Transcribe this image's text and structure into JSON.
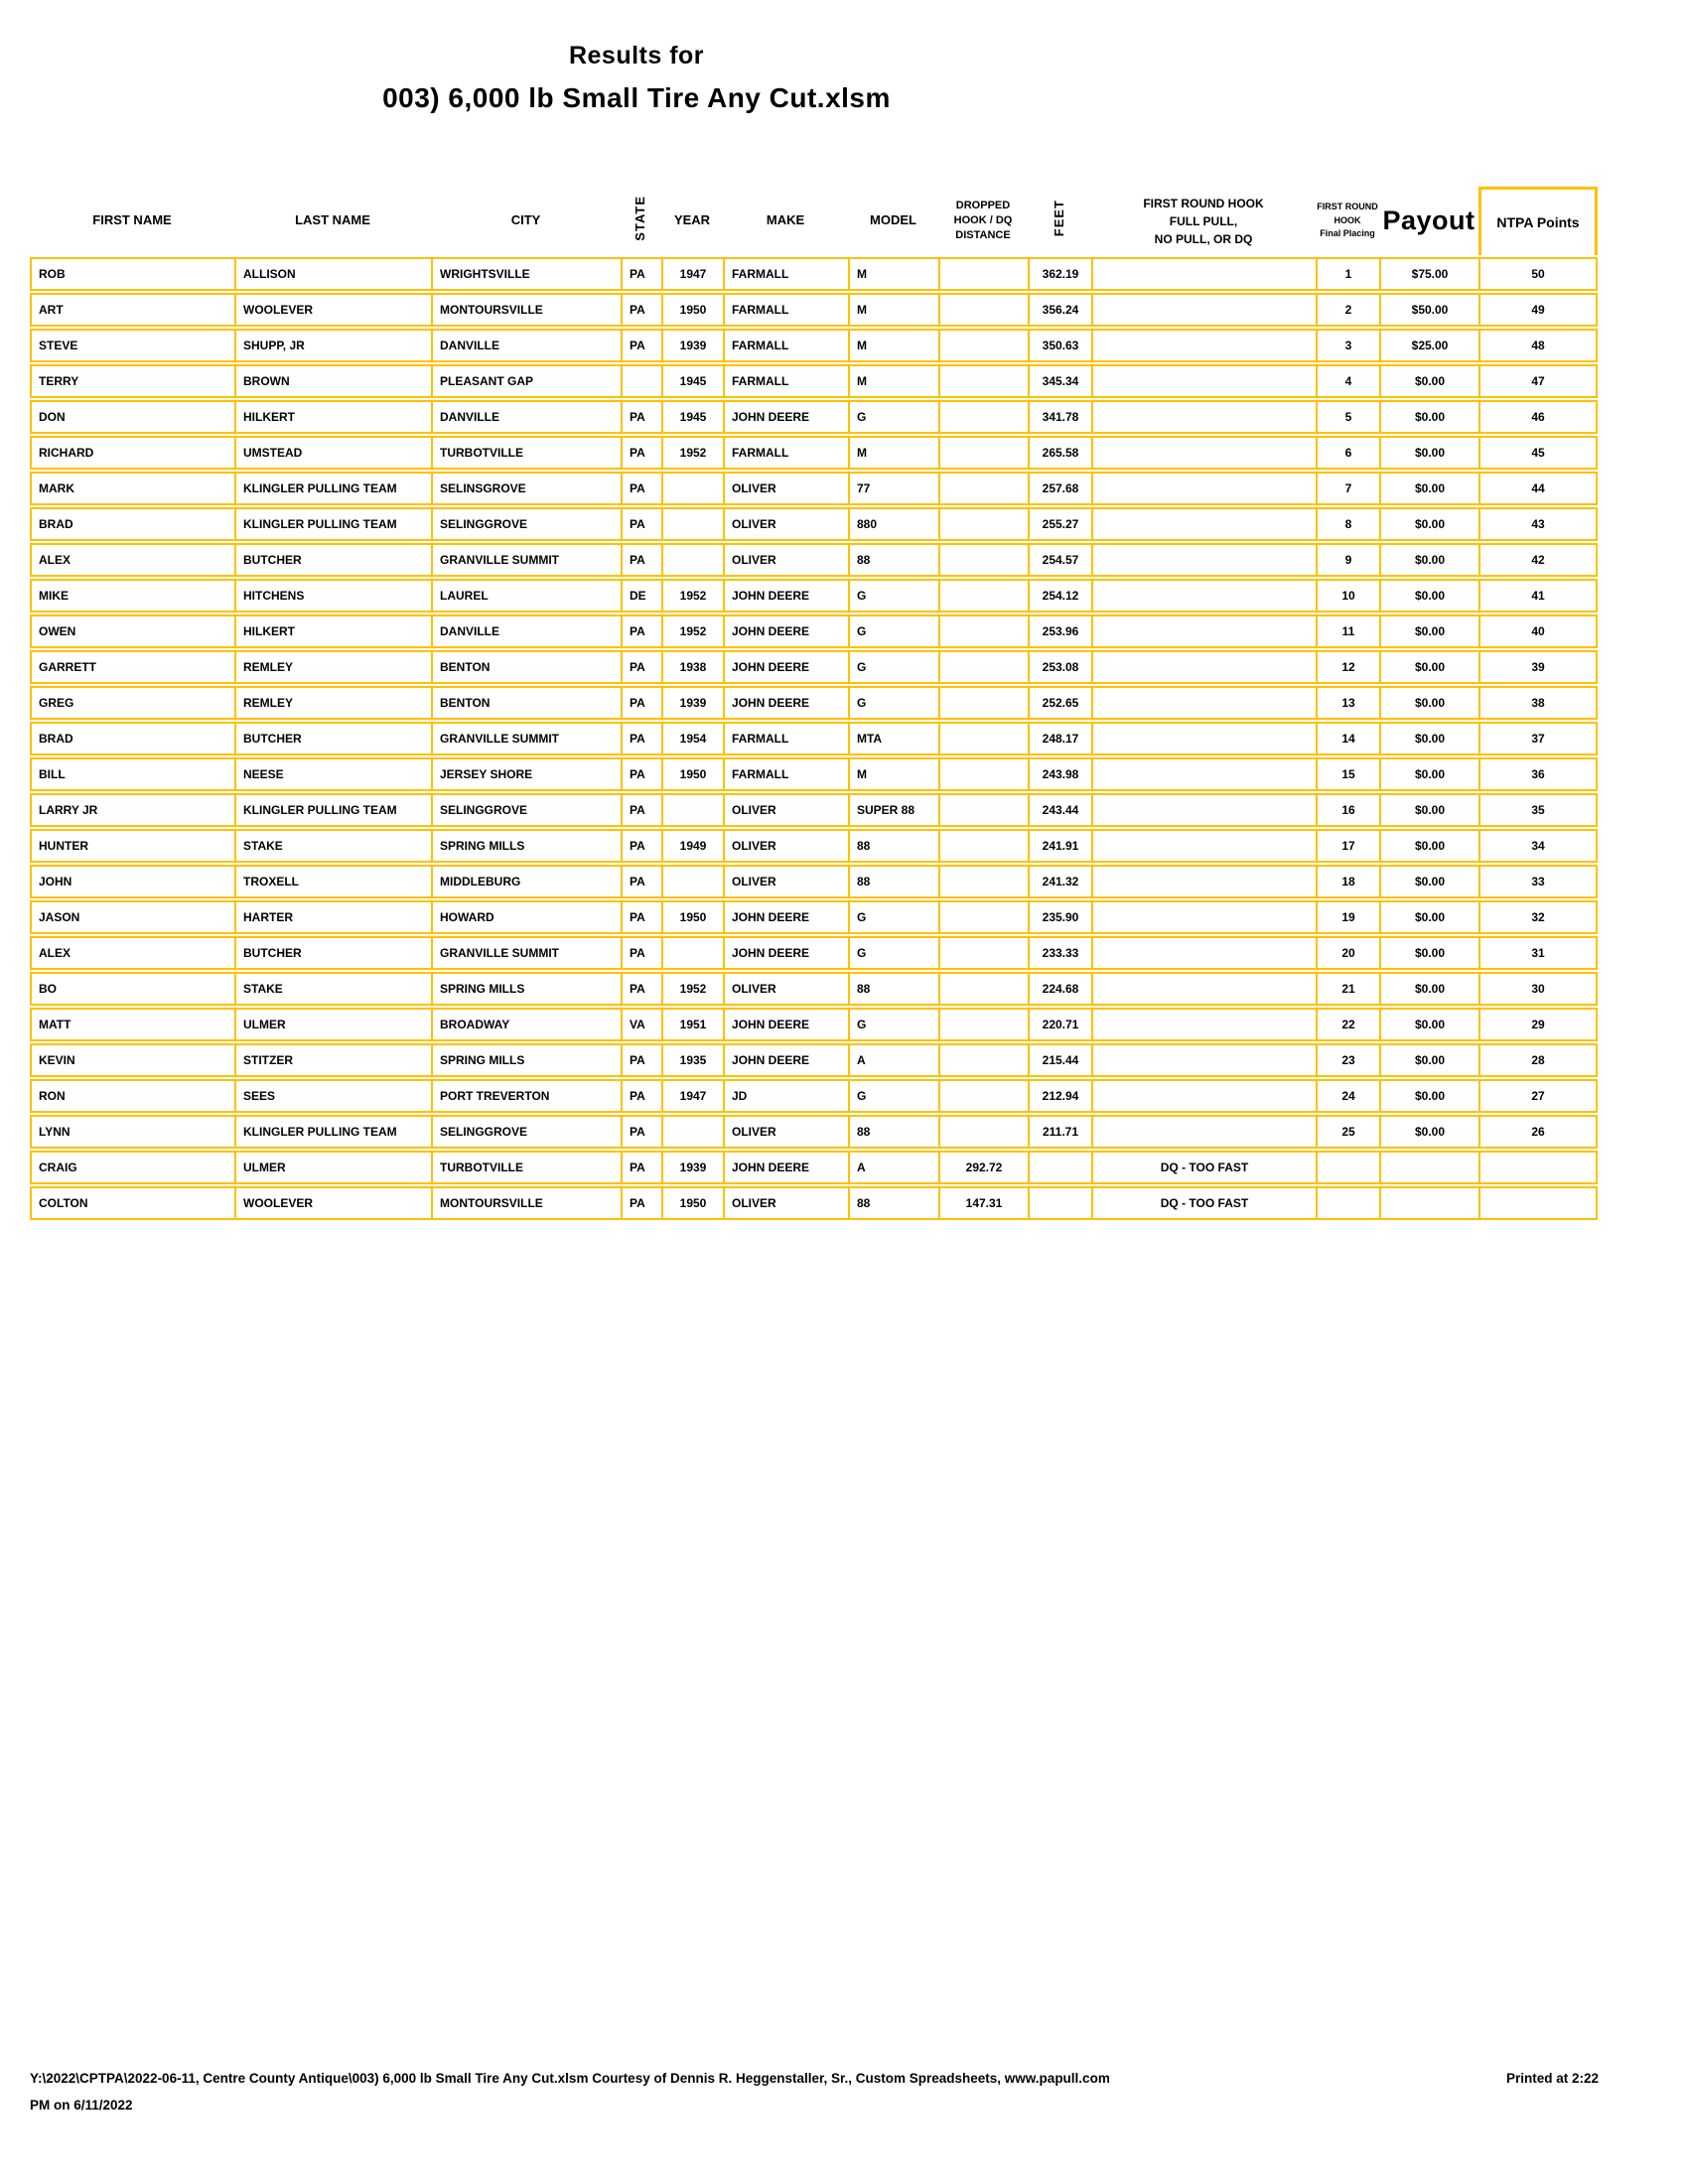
{
  "colors": {
    "grid": "#FFC000"
  },
  "title": {
    "line1": "Results for",
    "line2": "003) 6,000 lb Small Tire Any Cut.xlsm"
  },
  "table": {
    "headers": {
      "first_name": "FIRST NAME",
      "last_name": "LAST NAME",
      "city": "CITY",
      "state": "STATE",
      "year": "YEAR",
      "make": "MAKE",
      "model": "MODEL",
      "dropped": "DROPPED\nHOOK / DQ\nDISTANCE",
      "feet": "FEET",
      "first_round": "FIRST ROUND HOOK\nFULL PULL,\nNO PULL, OR DQ",
      "placing": "FIRST ROUND\nHOOK\nFinal Placing",
      "payout": "Payout",
      "ntpa": "NTPA Points"
    },
    "rows": [
      [
        "ROB",
        "ALLISON",
        "WRIGHTSVILLE",
        "PA",
        "1947",
        "FARMALL",
        "M",
        "",
        "362.19",
        "",
        "1",
        "$75.00",
        "50"
      ],
      [
        "ART",
        "WOOLEVER",
        "MONTOURSVILLE",
        "PA",
        "1950",
        "FARMALL",
        "M",
        "",
        "356.24",
        "",
        "2",
        "$50.00",
        "49"
      ],
      [
        "STEVE",
        "SHUPP, JR",
        "DANVILLE",
        "PA",
        "1939",
        "FARMALL",
        "M",
        "",
        "350.63",
        "",
        "3",
        "$25.00",
        "48"
      ],
      [
        "TERRY",
        "BROWN",
        "PLEASANT GAP",
        "",
        "1945",
        "FARMALL",
        "M",
        "",
        "345.34",
        "",
        "4",
        "$0.00",
        "47"
      ],
      [
        "DON",
        "HILKERT",
        "DANVILLE",
        "PA",
        "1945",
        "JOHN DEERE",
        "G",
        "",
        "341.78",
        "",
        "5",
        "$0.00",
        "46"
      ],
      [
        "RICHARD",
        "UMSTEAD",
        "TURBOTVILLE",
        "PA",
        "1952",
        "FARMALL",
        "M",
        "",
        "265.58",
        "",
        "6",
        "$0.00",
        "45"
      ],
      [
        "MARK",
        "KLINGLER PULLING TEAM",
        "SELINSGROVE",
        "PA",
        "",
        "OLIVER",
        "77",
        "",
        "257.68",
        "",
        "7",
        "$0.00",
        "44"
      ],
      [
        "BRAD",
        "KLINGLER PULLING TEAM",
        "SELINGGROVE",
        "PA",
        "",
        "OLIVER",
        "880",
        "",
        "255.27",
        "",
        "8",
        "$0.00",
        "43"
      ],
      [
        "ALEX",
        "BUTCHER",
        "GRANVILLE SUMMIT",
        "PA",
        "",
        "OLIVER",
        "88",
        "",
        "254.57",
        "",
        "9",
        "$0.00",
        "42"
      ],
      [
        "MIKE",
        "HITCHENS",
        "LAUREL",
        "DE",
        "1952",
        "JOHN DEERE",
        "G",
        "",
        "254.12",
        "",
        "10",
        "$0.00",
        "41"
      ],
      [
        "OWEN",
        "HILKERT",
        "DANVILLE",
        "PA",
        "1952",
        "JOHN DEERE",
        "G",
        "",
        "253.96",
        "",
        "11",
        "$0.00",
        "40"
      ],
      [
        "GARRETT",
        "REMLEY",
        "BENTON",
        "PA",
        "1938",
        "JOHN DEERE",
        "G",
        "",
        "253.08",
        "",
        "12",
        "$0.00",
        "39"
      ],
      [
        "GREG",
        "REMLEY",
        "BENTON",
        "PA",
        "1939",
        "JOHN DEERE",
        "G",
        "",
        "252.65",
        "",
        "13",
        "$0.00",
        "38"
      ],
      [
        "BRAD",
        "BUTCHER",
        "GRANVILLE SUMMIT",
        "PA",
        "1954",
        "FARMALL",
        "MTA",
        "",
        "248.17",
        "",
        "14",
        "$0.00",
        "37"
      ],
      [
        "BILL",
        "NEESE",
        "JERSEY SHORE",
        "PA",
        "1950",
        "FARMALL",
        "M",
        "",
        "243.98",
        "",
        "15",
        "$0.00",
        "36"
      ],
      [
        "LARRY JR",
        "KLINGLER PULLING TEAM",
        "SELINGGROVE",
        "PA",
        "",
        "OLIVER",
        "SUPER 88",
        "",
        "243.44",
        "",
        "16",
        "$0.00",
        "35"
      ],
      [
        "HUNTER",
        "STAKE",
        "SPRING MILLS",
        "PA",
        "1949",
        "OLIVER",
        "88",
        "",
        "241.91",
        "",
        "17",
        "$0.00",
        "34"
      ],
      [
        "JOHN",
        "TROXELL",
        "MIDDLEBURG",
        "PA",
        "",
        "OLIVER",
        "88",
        "",
        "241.32",
        "",
        "18",
        "$0.00",
        "33"
      ],
      [
        "JASON",
        "HARTER",
        "HOWARD",
        "PA",
        "1950",
        "JOHN DEERE",
        "G",
        "",
        "235.90",
        "",
        "19",
        "$0.00",
        "32"
      ],
      [
        "ALEX",
        "BUTCHER",
        "GRANVILLE SUMMIT",
        "PA",
        "",
        "JOHN DEERE",
        "G",
        "",
        "233.33",
        "",
        "20",
        "$0.00",
        "31"
      ],
      [
        "BO",
        "STAKE",
        "SPRING MILLS",
        "PA",
        "1952",
        "OLIVER",
        "88",
        "",
        "224.68",
        "",
        "21",
        "$0.00",
        "30"
      ],
      [
        "MATT",
        "ULMER",
        "BROADWAY",
        "VA",
        "1951",
        "JOHN DEERE",
        "G",
        "",
        "220.71",
        "",
        "22",
        "$0.00",
        "29"
      ],
      [
        "KEVIN",
        "STITZER",
        "SPRING MILLS",
        "PA",
        "1935",
        "JOHN DEERE",
        "A",
        "",
        "215.44",
        "",
        "23",
        "$0.00",
        "28"
      ],
      [
        "RON",
        "SEES",
        "PORT TREVERTON",
        "PA",
        "1947",
        "JD",
        "G",
        "",
        "212.94",
        "",
        "24",
        "$0.00",
        "27"
      ],
      [
        "LYNN",
        "KLINGLER PULLING TEAM",
        "SELINGGROVE",
        "PA",
        "",
        "OLIVER",
        "88",
        "",
        "211.71",
        "",
        "25",
        "$0.00",
        "26"
      ],
      [
        "CRAIG",
        "ULMER",
        "TURBOTVILLE",
        "PA",
        "1939",
        "JOHN DEERE",
        "A",
        "292.72",
        "",
        "DQ - TOO FAST",
        "",
        "",
        ""
      ],
      [
        "COLTON",
        "WOOLEVER",
        "MONTOURSVILLE",
        "PA",
        "1950",
        "OLIVER",
        "88",
        "147.31",
        "",
        "DQ - TOO FAST",
        "",
        "",
        ""
      ]
    ]
  },
  "footer": {
    "left": "Y:\\2022\\CPTPA\\2022-06-11, Centre County Antique\\003) 6,000 lb Small Tire Any Cut.xlsm  Courtesy of Dennis R. Heggenstaller, Sr., Custom Spreadsheets, www.papull.com",
    "right": "Printed at 2:22",
    "line2": "PM on 6/11/2022"
  }
}
